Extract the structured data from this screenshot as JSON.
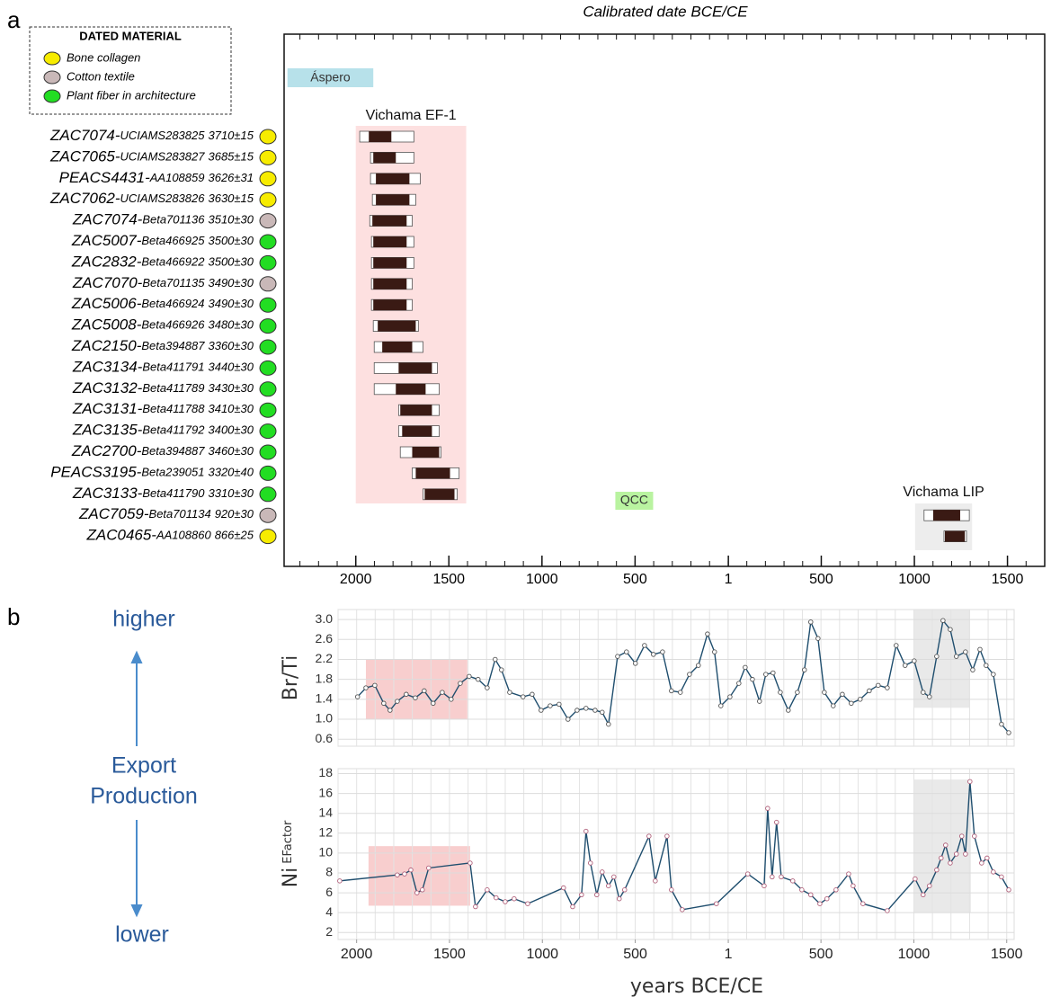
{
  "panels": [
    "a",
    "b"
  ],
  "side": {
    "top": "higher",
    "middle": [
      "Export",
      "Production"
    ],
    "bottom": "lower"
  },
  "chart_data": [
    {
      "type": "calibration",
      "title": "Calibrated date BCE/CE",
      "legend": {
        "title": "DATED MATERIAL",
        "entries": [
          {
            "label": "Bone collagen",
            "color": "#f7ec00"
          },
          {
            "label": "Cotton textile",
            "color": "#c9b8b8"
          },
          {
            "label": "Plant fiber in architecture",
            "color": "#22dd22"
          }
        ]
      },
      "samples": [
        {
          "id": "ZAC7074-",
          "lab": "UCIAMS283825",
          "date": "3710±15",
          "material": 0,
          "range": [
            -1979,
            -1688
          ],
          "core": [
            -1930,
            -1809
          ]
        },
        {
          "id": "ZAC7065-",
          "lab": "UCIAMS283827",
          "date": "3685±15",
          "material": 0,
          "range": [
            -1921,
            -1688
          ],
          "core": [
            -1906,
            -1785
          ]
        },
        {
          "id": "PEACS4431-",
          "lab": "AA108859",
          "date": "3626±31",
          "material": 0,
          "range": [
            -1921,
            -1654
          ],
          "core": [
            -1892,
            -1712
          ]
        },
        {
          "id": "ZAC7062-",
          "lab": "UCIAMS283826",
          "date": "3630±15",
          "material": 0,
          "range": [
            -1911,
            -1678
          ],
          "core": [
            -1892,
            -1712
          ]
        },
        {
          "id": "ZAC7074-",
          "lab": "Beta701136",
          "date": "3510±30",
          "material": 1,
          "range": [
            -1925,
            -1697
          ],
          "core": [
            -1911,
            -1727
          ]
        },
        {
          "id": "ZAC5007-",
          "lab": "Beta466925",
          "date": "3500±30",
          "material": 2,
          "range": [
            -1916,
            -1688
          ],
          "core": [
            -1906,
            -1727
          ]
        },
        {
          "id": "ZAC2832-",
          "lab": "Beta466922",
          "date": "3500±30",
          "material": 2,
          "range": [
            -1916,
            -1688
          ],
          "core": [
            -1906,
            -1727
          ]
        },
        {
          "id": "ZAC7070-",
          "lab": "Beta701135",
          "date": "3490±30",
          "material": 1,
          "range": [
            -1916,
            -1697
          ],
          "core": [
            -1906,
            -1727
          ]
        },
        {
          "id": "ZAC5006-",
          "lab": "Beta466924",
          "date": "3490±30",
          "material": 2,
          "range": [
            -1916,
            -1697
          ],
          "core": [
            -1906,
            -1727
          ]
        },
        {
          "id": "ZAC5008-",
          "lab": "Beta466926",
          "date": "3480±30",
          "material": 2,
          "range": [
            -1906,
            -1664
          ],
          "core": [
            -1882,
            -1678
          ]
        },
        {
          "id": "ZAC2150-",
          "lab": "Beta394887",
          "date": "3360±30",
          "material": 2,
          "range": [
            -1901,
            -1639
          ],
          "core": [
            -1858,
            -1697
          ]
        },
        {
          "id": "ZAC3134-",
          "lab": "Beta411791",
          "date": "3440±30",
          "material": 2,
          "range": [
            -1901,
            -1562
          ],
          "core": [
            -1770,
            -1591
          ]
        },
        {
          "id": "ZAC3132-",
          "lab": "Beta411789",
          "date": "3430±30",
          "material": 2,
          "range": [
            -1901,
            -1552
          ],
          "core": [
            -1785,
            -1625
          ]
        },
        {
          "id": "ZAC3131-",
          "lab": "Beta411788",
          "date": "3410±30",
          "material": 2,
          "range": [
            -1770,
            -1552
          ],
          "core": [
            -1761,
            -1591
          ]
        },
        {
          "id": "ZAC3135-",
          "lab": "Beta411792",
          "date": "3400±30",
          "material": 2,
          "range": [
            -1770,
            -1552
          ],
          "core": [
            -1751,
            -1591
          ]
        },
        {
          "id": "ZAC2700-",
          "lab": "Beta394887",
          "date": "3460±30",
          "material": 2,
          "range": [
            -1761,
            -1542
          ],
          "core": [
            -1697,
            -1552
          ]
        },
        {
          "id": "PEACS3195-",
          "lab": "Beta239051",
          "date": "3320±40",
          "material": 2,
          "range": [
            -1697,
            -1445
          ],
          "core": [
            -1678,
            -1494
          ]
        },
        {
          "id": "ZAC3133-",
          "lab": "Beta411790",
          "date": "3310±30",
          "material": 2,
          "range": [
            -1639,
            -1455
          ],
          "core": [
            -1630,
            -1470
          ]
        },
        {
          "id": "ZAC7059-",
          "lab": "Beta701134",
          "date": "920±30",
          "material": 1,
          "range": [
            1052,
            1295
          ],
          "core": [
            1101,
            1246
          ]
        },
        {
          "id": "ZAC0465-",
          "lab": "AA108860",
          "date": "866±25",
          "material": 0,
          "range": [
            1159,
            1280
          ],
          "core": [
            1164,
            1271
          ]
        }
      ],
      "periods": [
        {
          "name": "Áspero",
          "range": [
            -2367,
            -1906
          ],
          "color": "#b7e1ea"
        },
        {
          "name": "Vichama EF-1",
          "range": [
            -2000,
            -1407
          ],
          "color": "#fde0e0"
        },
        {
          "name": "QCC",
          "range": [
            -606,
            -403
          ],
          "color": "#b9f3a0"
        },
        {
          "name": "Vichama LIP",
          "range": [
            1004,
            1310
          ],
          "color": "#ededed"
        }
      ],
      "xlim": [
        -2385,
        1700
      ],
      "xticks": [
        {
          "value": -2000,
          "label": "2000"
        },
        {
          "value": -1500,
          "label": "1500"
        },
        {
          "value": -1000,
          "label": "1000"
        },
        {
          "value": -500,
          "label": "500"
        },
        1,
        500,
        1000,
        1500
      ],
      "minor_step": 100
    },
    {
      "type": "line",
      "ylabel": "Br/Ti",
      "color": "#1f4e6e",
      "marker_color": "#555555",
      "x": [
        -1995,
        -1950,
        -1902,
        -1854,
        -1820,
        -1781,
        -1733,
        -1684,
        -1636,
        -1588,
        -1539,
        -1491,
        -1442,
        -1394,
        -1346,
        -1297,
        -1254,
        -1220,
        -1176,
        -1104,
        -1055,
        -1007,
        -958,
        -910,
        -862,
        -813,
        -765,
        -716,
        -678,
        -644,
        -595,
        -547,
        -499,
        -450,
        -402,
        -353,
        -305,
        -257,
        -208,
        -160,
        -111,
        -73,
        -39,
        10,
        58,
        92,
        131,
        169,
        203,
        242,
        281,
        324,
        373,
        411,
        445,
        484,
        518,
        566,
        615,
        663,
        711,
        760,
        808,
        857,
        905,
        953,
        1002,
        1050,
        1084,
        1123,
        1157,
        1196,
        1229,
        1278,
        1317,
        1356,
        1389,
        1428,
        1472,
        1511
      ],
      "values": [
        1.45,
        1.63,
        1.68,
        1.32,
        1.18,
        1.36,
        1.5,
        1.43,
        1.57,
        1.32,
        1.54,
        1.4,
        1.72,
        1.86,
        1.8,
        1.63,
        2.2,
        1.99,
        1.54,
        1.45,
        1.5,
        1.18,
        1.27,
        1.3,
        1.0,
        1.18,
        1.22,
        1.18,
        1.14,
        0.9,
        2.26,
        2.35,
        2.12,
        2.48,
        2.3,
        2.35,
        1.57,
        1.54,
        1.9,
        2.08,
        2.71,
        2.35,
        1.27,
        1.45,
        1.72,
        2.04,
        1.8,
        1.36,
        1.9,
        1.93,
        1.54,
        1.18,
        1.54,
        1.99,
        2.95,
        2.62,
        1.54,
        1.27,
        1.5,
        1.32,
        1.4,
        1.57,
        1.68,
        1.63,
        2.48,
        2.08,
        2.17,
        1.54,
        1.45,
        2.26,
        2.98,
        2.8,
        2.26,
        2.35,
        1.99,
        2.4,
        2.08,
        1.9,
        0.9,
        0.73
      ],
      "xlim": [
        -2100,
        1540
      ],
      "ylim": [
        0.46,
        3.2
      ],
      "yticks": [
        0.6,
        {
          "value": 1,
          "label": "1.0"
        },
        1.4,
        1.8,
        2.2,
        2.6,
        {
          "value": 3,
          "label": "3.0"
        }
      ],
      "grid": true,
      "minor_step": 100,
      "highlights": [
        {
          "x": [
            -1950,
            -1404
          ],
          "y": [
            1.0,
            2.2
          ],
          "color": "#f7c5c5"
        },
        {
          "x": [
            1002,
            1302
          ],
          "y": [
            1.23,
            3.2
          ],
          "color": "#e5e5e5"
        }
      ]
    },
    {
      "type": "line",
      "ylabel": "Ni",
      "ylabel_sub": "EFactor",
      "xlabel": "years BCE/CE",
      "color": "#1f4e6e",
      "marker_color": "#b0607a",
      "x": [
        -2091,
        -1781,
        -1742,
        -1708,
        -1675,
        -1646,
        -1612,
        -1389,
        -1360,
        -1297,
        -1249,
        -1200,
        -1152,
        -1079,
        -886,
        -837,
        -789,
        -765,
        -741,
        -707,
        -678,
        -644,
        -615,
        -586,
        -557,
        -426,
        -392,
        -329,
        -305,
        -247,
        -63,
        106,
        194,
        213,
        237,
        261,
        286,
        348,
        397,
        445,
        494,
        532,
        581,
        649,
        673,
        726,
        857,
        1007,
        1050,
        1084,
        1123,
        1147,
        1171,
        1196,
        1229,
        1258,
        1278,
        1302,
        1326,
        1365,
        1394,
        1428,
        1472,
        1511
      ],
      "values": [
        7.2,
        7.8,
        7.9,
        8.3,
        6.0,
        6.3,
        8.5,
        9.0,
        4.6,
        6.3,
        5.5,
        5.1,
        5.4,
        4.9,
        6.5,
        4.6,
        5.8,
        12.2,
        9.0,
        5.8,
        8.1,
        6.7,
        7.6,
        5.4,
        6.3,
        11.7,
        7.2,
        11.7,
        6.3,
        4.3,
        4.9,
        7.9,
        6.7,
        14.5,
        7.6,
        13.1,
        7.6,
        7.2,
        6.3,
        5.8,
        4.9,
        5.4,
        6.3,
        7.9,
        6.7,
        4.9,
        4.2,
        7.4,
        5.8,
        6.7,
        8.3,
        9.5,
        10.8,
        9.0,
        9.9,
        11.7,
        9.9,
        17.2,
        11.7,
        9.0,
        9.5,
        8.1,
        7.6,
        6.3
      ],
      "xlim": [
        -2100,
        1540
      ],
      "ylim": [
        1.3,
        18.5
      ],
      "yticks": [
        2,
        4,
        6,
        8,
        10,
        12,
        14,
        16,
        18
      ],
      "xticks": [
        {
          "value": -2000,
          "label": "2000"
        },
        {
          "value": -1500,
          "label": "1500"
        },
        {
          "value": -1000,
          "label": "1000"
        },
        {
          "value": -500,
          "label": "500"
        },
        1,
        500,
        1000,
        1500
      ],
      "grid": true,
      "minor_step": 100,
      "highlights": [
        {
          "x": [
            -1936,
            -1389
          ],
          "y": [
            4.7,
            10.7
          ],
          "color": "#f7c5c5"
        },
        {
          "x": [
            1002,
            1307
          ],
          "y": [
            4.0,
            17.4
          ],
          "color": "#e5e5e5"
        }
      ]
    }
  ]
}
